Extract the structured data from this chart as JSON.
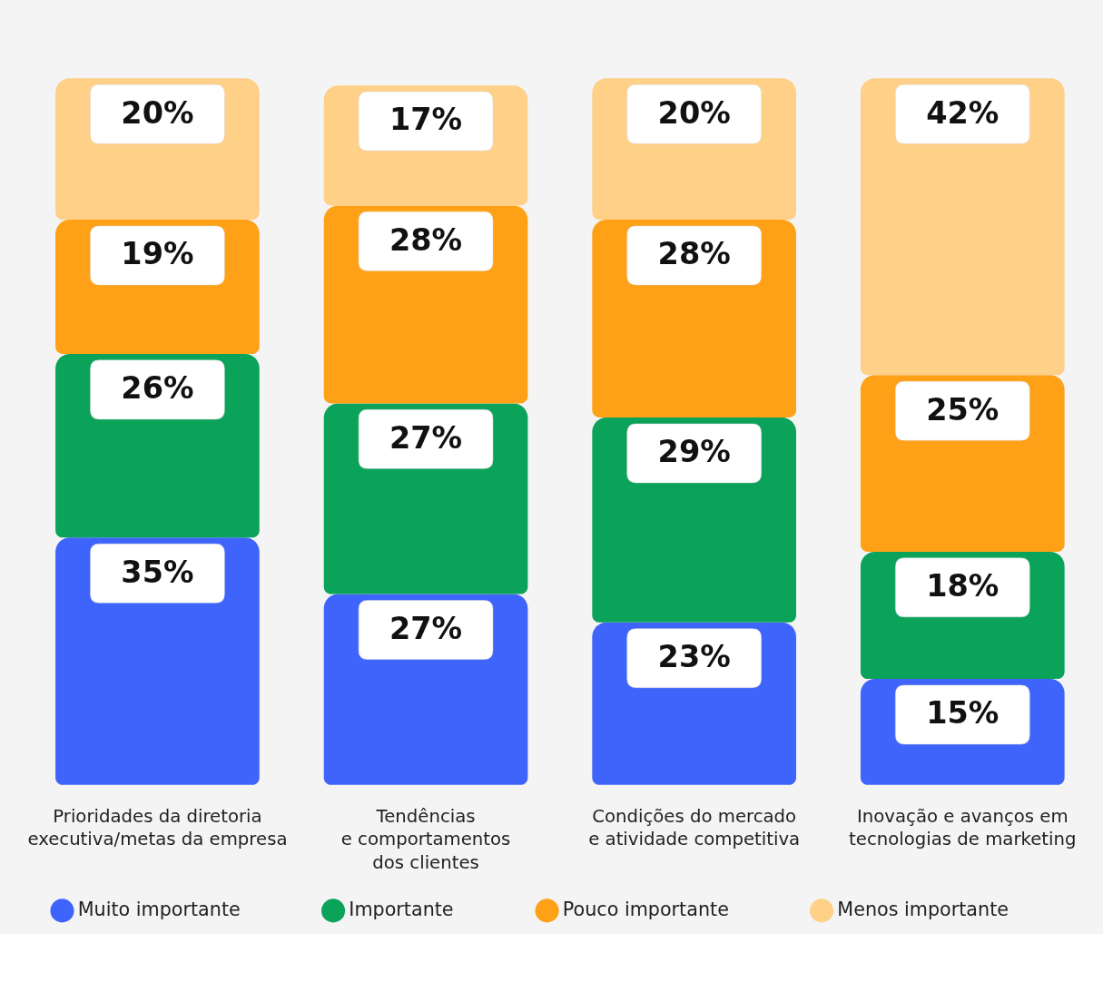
{
  "chart_data": {
    "type": "bar",
    "stacked": true,
    "legend": "bottom",
    "categories": [
      "Prioridades da diretoria\nexecutiva/metas da empresa",
      "Tendências\ne comportamentos\ndos clientes",
      "Condições do mercado\ne atividade competitiva",
      "Inovação e avanços em\ntecnologias de marketing"
    ],
    "series": [
      {
        "name": "Muito importante",
        "color": "#3f64fb",
        "values": [
          35,
          27,
          23,
          15
        ],
        "value_labels": [
          "35%",
          "27%",
          "23%",
          "15%"
        ]
      },
      {
        "name": "Importante",
        "color": "#0ba25a",
        "values": [
          26,
          27,
          29,
          18
        ],
        "value_labels": [
          "26%",
          "27%",
          "29%",
          "18%"
        ]
      },
      {
        "name": "Pouco importante",
        "color": "#fea116",
        "values": [
          19,
          28,
          28,
          25
        ],
        "value_labels": [
          "19%",
          "28%",
          "28%",
          "25%"
        ]
      },
      {
        "name": "Menos importante",
        "color": "#fed088",
        "values": [
          20,
          17,
          20,
          42
        ],
        "value_labels": [
          "20%",
          "17%",
          "20%",
          "42%"
        ]
      }
    ]
  }
}
